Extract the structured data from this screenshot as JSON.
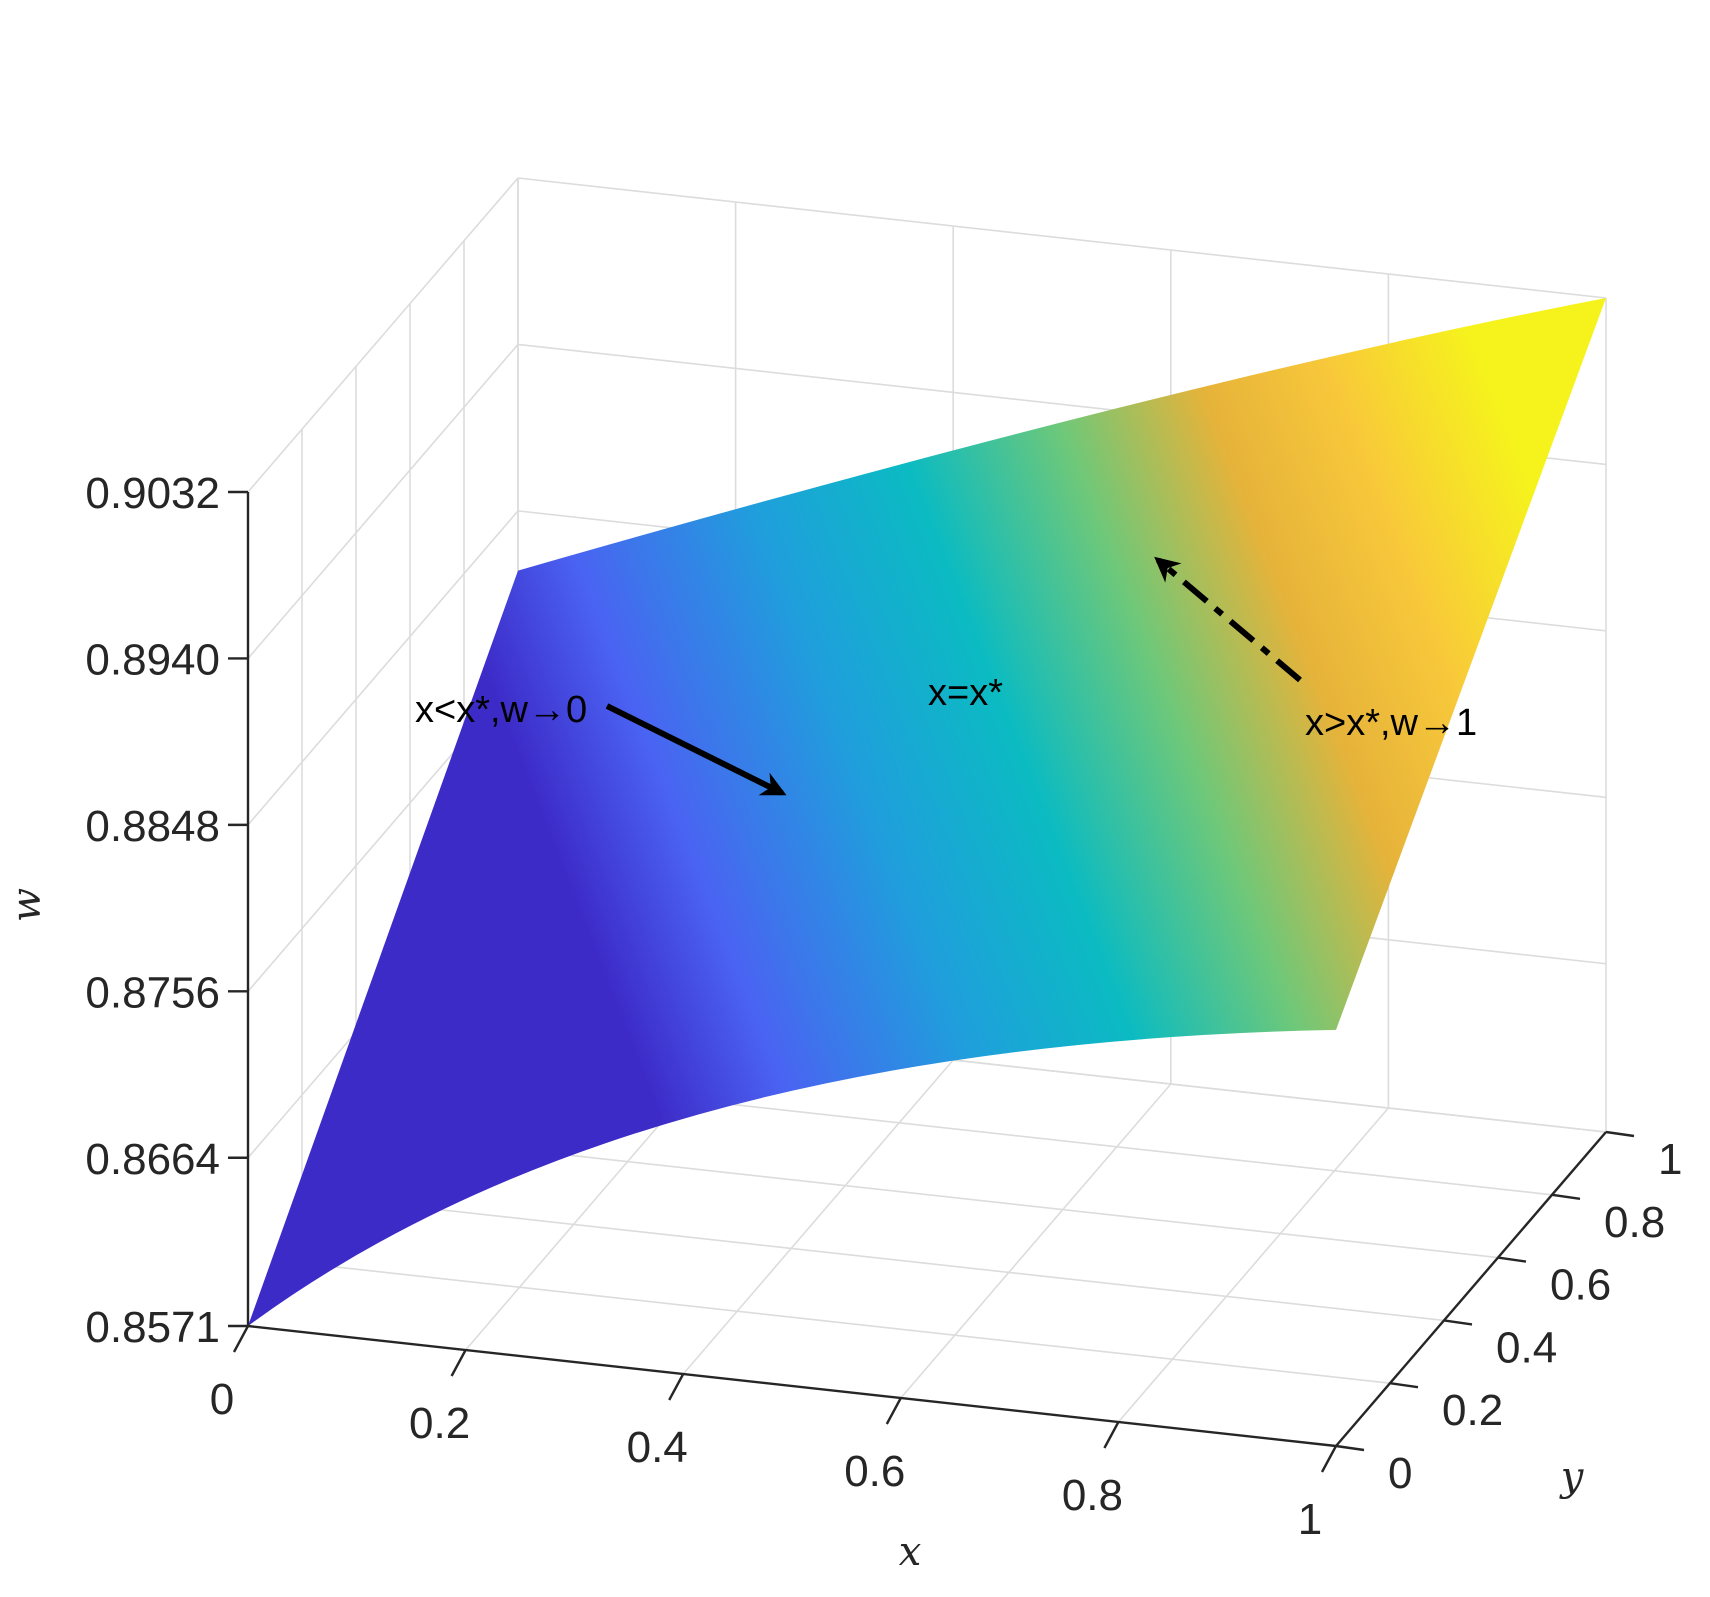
{
  "chart_data": {
    "type": "surface",
    "xlabel": "x",
    "ylabel": "y",
    "zlabel": "w",
    "xlim": [
      0,
      1
    ],
    "ylim": [
      0,
      1
    ],
    "zlim": [
      0.8571,
      0.9032
    ],
    "x_ticks": [
      "0",
      "0.2",
      "0.4",
      "0.6",
      "0.8",
      "1"
    ],
    "y_ticks": [
      "0",
      "0.2",
      "0.4",
      "0.6",
      "0.8",
      "1"
    ],
    "z_ticks": [
      "0.8571",
      "0.8664",
      "0.8756",
      "0.8848",
      "0.8940",
      "0.9032"
    ],
    "grid": true,
    "colormap": "parula",
    "surface": {
      "x": [
        0,
        1
      ],
      "y": [
        0,
        1
      ],
      "w": [
        [
          0.8571,
          0.8815
        ],
        [
          0.8801,
          0.9032
        ]
      ]
    },
    "annotations": [
      {
        "text": "x<x*,w→0",
        "arrow": "solid"
      },
      {
        "text": "x=x*",
        "arrow": "none"
      },
      {
        "text": "x>x*,w→1",
        "arrow": "dashed"
      }
    ]
  }
}
